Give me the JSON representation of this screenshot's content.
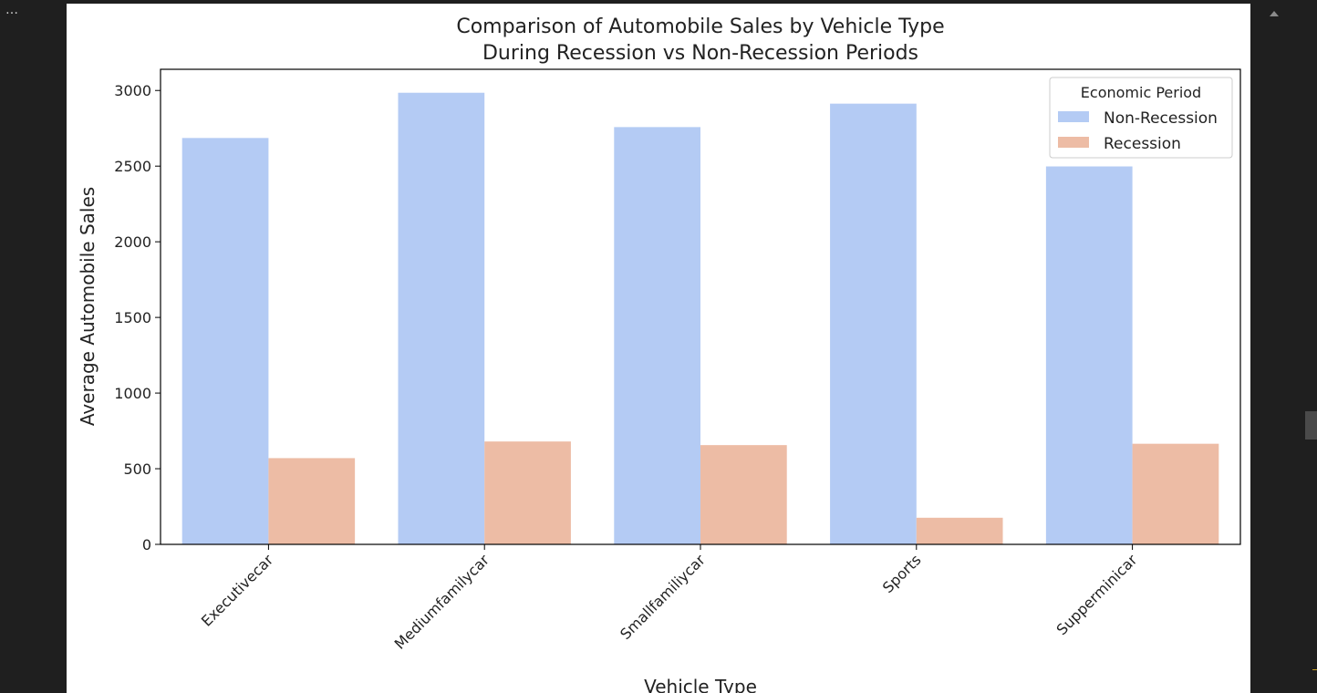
{
  "notebook": {
    "more_icon": "…"
  },
  "chart_data": {
    "type": "bar",
    "title_lines": [
      "Comparison of Automobile Sales by Vehicle Type",
      "During Recession vs Non-Recession Periods"
    ],
    "xlabel": "Vehicle Type",
    "ylabel": "Average Automobile Sales",
    "categories": [
      "Executivecar",
      "Mediumfamilycar",
      "Smallfamiliycar",
      "Sports",
      "Supperminicar"
    ],
    "series": [
      {
        "name": "Non-Recession",
        "color": "#b4cbf4",
        "values": [
          2686,
          2985,
          2758,
          2913,
          2498
        ]
      },
      {
        "name": "Recession",
        "color": "#edbca5",
        "values": [
          570,
          680,
          656,
          176,
          665
        ]
      }
    ],
    "ylim": [
      0,
      3140
    ],
    "yticks": [
      0,
      500,
      1000,
      1500,
      2000,
      2500,
      3000
    ],
    "legend": {
      "title": "Economic Period",
      "placement": "top-right"
    },
    "grid": false
  }
}
